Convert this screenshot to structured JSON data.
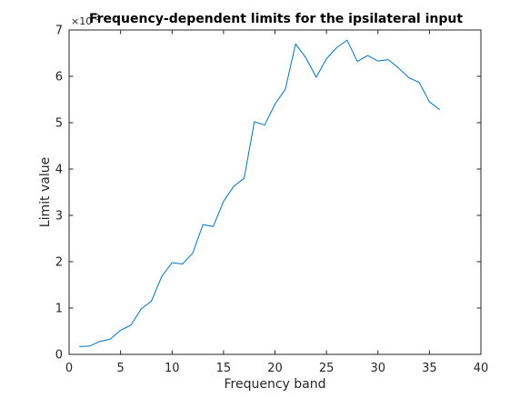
{
  "chart_data": {
    "type": "line",
    "title": "Frequency-dependent limits for the ipsilateral input",
    "xlabel": "Frequency band",
    "ylabel": "Limit value",
    "y_exponent_label": "×10",
    "y_exponent_power": "-3",
    "xlim": [
      0,
      40
    ],
    "ylim": [
      0,
      7
    ],
    "xticks": [
      0,
      5,
      10,
      15,
      20,
      25,
      30,
      35,
      40
    ],
    "yticks": [
      0,
      1,
      2,
      3,
      4,
      5,
      6,
      7
    ],
    "grid": false,
    "series": [
      {
        "color": "#0072bd",
        "x": [
          1,
          2,
          3,
          4,
          5,
          6,
          7,
          8,
          9,
          10,
          11,
          12,
          13,
          14,
          15,
          16,
          17,
          18,
          19,
          20,
          21,
          22,
          23,
          24,
          25,
          26,
          27,
          28,
          29,
          30,
          31,
          32,
          33,
          34,
          35,
          36
        ],
        "y": [
          0.17,
          0.18,
          0.28,
          0.33,
          0.52,
          0.63,
          0.98,
          1.15,
          1.68,
          1.98,
          1.95,
          2.18,
          2.8,
          2.76,
          3.3,
          3.63,
          3.8,
          5.02,
          4.95,
          5.4,
          5.72,
          6.7,
          6.4,
          5.98,
          6.38,
          6.62,
          6.78,
          6.32,
          6.45,
          6.33,
          6.36,
          6.18,
          5.97,
          5.87,
          5.45,
          5.28
        ]
      }
    ]
  }
}
